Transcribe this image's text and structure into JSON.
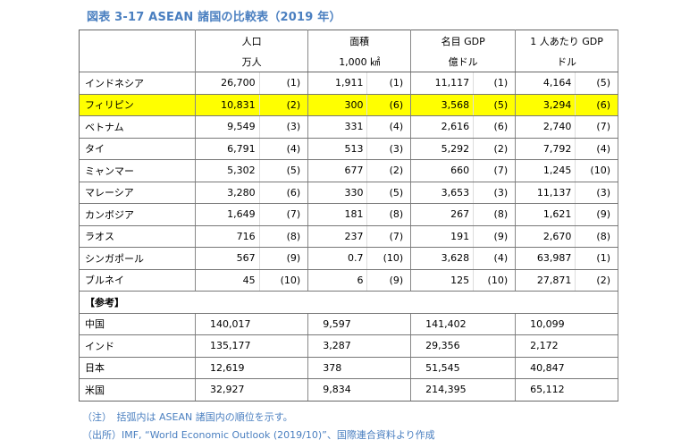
{
  "title": "図表 3-17 ASEAN 諸国の比較表（2019 年）",
  "headers": [
    {
      "label": "人口",
      "unit": "万人"
    },
    {
      "label": "面積",
      "unit": "1,000 ㎢"
    },
    {
      "label": "名目 GDP",
      "unit": "億ドル"
    },
    {
      "label": "1 人あたり GDP",
      "unit": "ドル"
    }
  ],
  "highlight_color": "#ffff00",
  "rows": [
    {
      "name": "インドネシア",
      "cells": [
        "26,700",
        "(1)",
        "1,911",
        "(1)",
        "11,117",
        "(1)",
        "4,164",
        "(5)"
      ]
    },
    {
      "name": "フィリピン",
      "highlight": true,
      "cells": [
        "10,831",
        "(2)",
        "300",
        "(6)",
        "3,568",
        "(5)",
        "3,294",
        "(6)"
      ]
    },
    {
      "name": "ベトナム",
      "cells": [
        "9,549",
        "(3)",
        "331",
        "(4)",
        "2,616",
        "(6)",
        "2,740",
        "(7)"
      ]
    },
    {
      "name": "タイ",
      "cells": [
        "6,791",
        "(4)",
        "513",
        "(3)",
        "5,292",
        "(2)",
        "7,792",
        "(4)"
      ]
    },
    {
      "name": "ミャンマー",
      "cells": [
        "5,302",
        "(5)",
        "677",
        "(2)",
        "660",
        "(7)",
        "1,245",
        "(10)"
      ]
    },
    {
      "name": "マレーシア",
      "cells": [
        "3,280",
        "(6)",
        "330",
        "(5)",
        "3,653",
        "(3)",
        "11,137",
        "(3)"
      ]
    },
    {
      "name": "カンボジア",
      "cells": [
        "1,649",
        "(7)",
        "181",
        "(8)",
        "267",
        "(8)",
        "1,621",
        "(9)"
      ]
    },
    {
      "name": "ラオス",
      "cells": [
        "716",
        "(8)",
        "237",
        "(7)",
        "191",
        "(9)",
        "2,670",
        "(8)"
      ]
    },
    {
      "name": "シンガポール",
      "cells": [
        "567",
        "(9)",
        "0.7",
        "(10)",
        "3,628",
        "(4)",
        "63,987",
        "(1)"
      ]
    },
    {
      "name": "ブルネイ",
      "cells": [
        "45",
        "(10)",
        "6",
        "(9)",
        "125",
        "(10)",
        "27,871",
        "(2)"
      ]
    }
  ],
  "reference_label": "【参考】",
  "reference_rows": [
    {
      "name": "中国",
      "cells": [
        "140,017",
        "9,597",
        "141,402",
        "10,099"
      ]
    },
    {
      "name": "インド",
      "cells": [
        "135,177",
        "3,287",
        "29,356",
        "2,172"
      ]
    },
    {
      "name": "日本",
      "cells": [
        "12,619",
        "378",
        "51,545",
        "40,847"
      ]
    },
    {
      "name": "米国",
      "cells": [
        "32,927",
        "9,834",
        "214,395",
        "65,112"
      ]
    }
  ],
  "notes": [
    "（注）　括弧内は ASEAN 諸国内の順位を示す。",
    "（出所）IMF, “World Economic Outlook (2019/10)”、国際連合資料より作成"
  ]
}
